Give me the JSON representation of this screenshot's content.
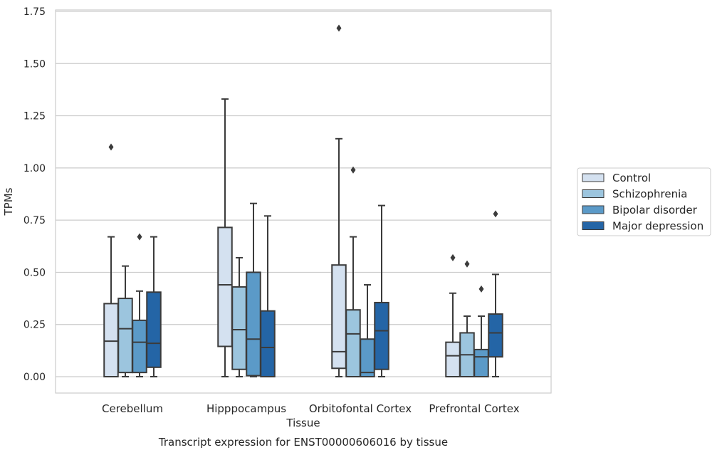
{
  "chart_data": {
    "type": "box",
    "xlabel": "Tissue",
    "ylabel": "TPMs",
    "caption": "Transcript expression for ENST00000606016 by tissue",
    "ylim": [
      -0.08,
      1.76
    ],
    "yticks": [
      "0.00",
      "0.25",
      "0.50",
      "0.75",
      "1.00",
      "1.25",
      "1.50",
      "1.75"
    ],
    "grid": "horizontal",
    "legend_position": "right",
    "categories": [
      "Cerebellum",
      "Hipppocampus",
      "Orbitofontal Cortex",
      "Prefrontal Cortex"
    ],
    "series": [
      {
        "name": "Control",
        "color": "#d4e1f0",
        "boxes": [
          {
            "min": 0.0,
            "q1": 0.0,
            "median": 0.17,
            "q3": 0.35,
            "max": 0.67,
            "outliers": [
              1.1
            ]
          },
          {
            "min": 0.0,
            "q1": 0.145,
            "median": 0.44,
            "q3": 0.715,
            "max": 1.33,
            "outliers": []
          },
          {
            "min": 0.0,
            "q1": 0.04,
            "median": 0.12,
            "q3": 0.535,
            "max": 1.14,
            "outliers": [
              1.67
            ]
          },
          {
            "min": 0.0,
            "q1": 0.0,
            "median": 0.1,
            "q3": 0.165,
            "max": 0.4,
            "outliers": [
              0.57
            ]
          }
        ]
      },
      {
        "name": "Schizophrenia",
        "color": "#9cc5de",
        "boxes": [
          {
            "min": 0.0,
            "q1": 0.02,
            "median": 0.23,
            "q3": 0.375,
            "max": 0.53,
            "outliers": []
          },
          {
            "min": 0.0,
            "q1": 0.035,
            "median": 0.225,
            "q3": 0.43,
            "max": 0.57,
            "outliers": []
          },
          {
            "min": 0.0,
            "q1": 0.0,
            "median": 0.205,
            "q3": 0.32,
            "max": 0.67,
            "outliers": [
              0.99
            ]
          },
          {
            "min": 0.0,
            "q1": 0.0,
            "median": 0.105,
            "q3": 0.21,
            "max": 0.29,
            "outliers": [
              0.54
            ]
          }
        ]
      },
      {
        "name": "Bipolar disorder",
        "color": "#5b9ac8",
        "boxes": [
          {
            "min": 0.0,
            "q1": 0.02,
            "median": 0.165,
            "q3": 0.27,
            "max": 0.41,
            "outliers": [
              0.67
            ]
          },
          {
            "min": 0.0,
            "q1": 0.005,
            "median": 0.18,
            "q3": 0.5,
            "max": 0.83,
            "outliers": []
          },
          {
            "min": 0.0,
            "q1": 0.0,
            "median": 0.02,
            "q3": 0.18,
            "max": 0.44,
            "outliers": []
          },
          {
            "min": 0.0,
            "q1": 0.0,
            "median": 0.095,
            "q3": 0.13,
            "max": 0.29,
            "outliers": [
              0.42
            ]
          }
        ]
      },
      {
        "name": "Major depression",
        "color": "#2465a6",
        "boxes": [
          {
            "min": 0.0,
            "q1": 0.045,
            "median": 0.16,
            "q3": 0.405,
            "max": 0.67,
            "outliers": []
          },
          {
            "min": 0.0,
            "q1": 0.0,
            "median": 0.14,
            "q3": 0.315,
            "max": 0.77,
            "outliers": []
          },
          {
            "min": 0.0,
            "q1": 0.035,
            "median": 0.22,
            "q3": 0.355,
            "max": 0.82,
            "outliers": []
          },
          {
            "min": 0.0,
            "q1": 0.095,
            "median": 0.21,
            "q3": 0.3,
            "max": 0.49,
            "outliers": [
              0.78
            ]
          }
        ]
      }
    ]
  }
}
